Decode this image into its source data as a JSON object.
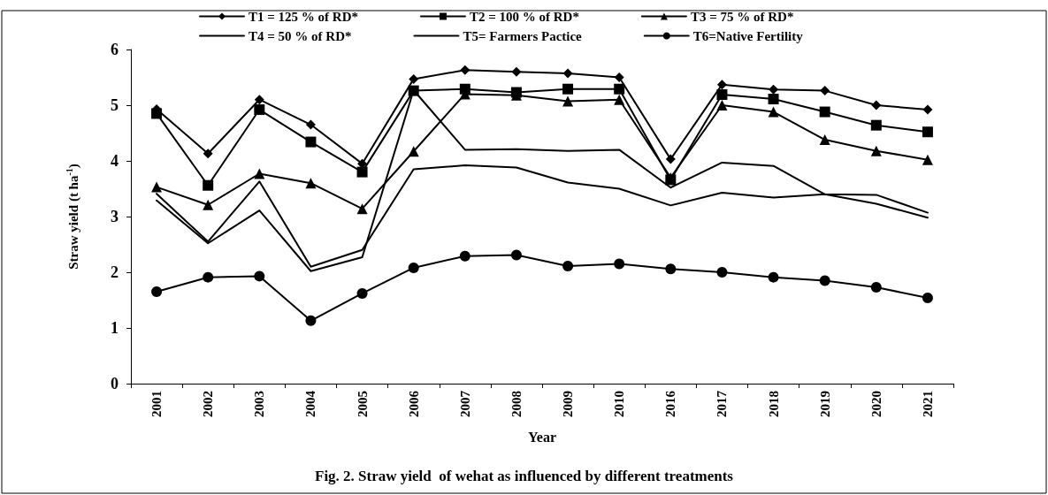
{
  "chart_data": {
    "type": "line",
    "title": "Fig. 2. Straw yield  of wehat as influenced by different treatments",
    "xlabel": "Year",
    "ylabel": "Straw yield (t ha$^{-1}$)",
    "categories": [
      "2001",
      "2002",
      "2003",
      "2004",
      "2005",
      "2006",
      "2007",
      "2008",
      "2009",
      "2010",
      "2016",
      "2017",
      "2018",
      "2019",
      "2020",
      "2021"
    ],
    "ylim": [
      0,
      6
    ],
    "yticks": [
      0,
      1,
      2,
      3,
      4,
      5,
      6
    ],
    "grid": false,
    "legend": "top",
    "line_style": "solid",
    "series": [
      {
        "name": "T1 = 125 % of RD*",
        "color": "#000000",
        "marker": "diamond",
        "values": [
          4.93,
          4.13,
          5.1,
          4.65,
          3.95,
          5.47,
          5.63,
          5.6,
          5.57,
          5.5,
          4.03,
          5.37,
          5.28,
          5.26,
          5.0,
          4.92
        ]
      },
      {
        "name": "T2 = 100 % of RD*",
        "color": "#000000",
        "marker": "square",
        "values": [
          4.85,
          3.56,
          4.92,
          4.34,
          3.8,
          5.26,
          5.29,
          5.23,
          5.29,
          5.29,
          3.66,
          5.19,
          5.11,
          4.88,
          4.64,
          4.52
        ]
      },
      {
        "name": "T3 = 75 % of RD*",
        "color": "#000000",
        "marker": "triangle",
        "values": [
          3.53,
          3.21,
          3.77,
          3.6,
          3.14,
          4.17,
          5.2,
          5.18,
          5.07,
          5.1,
          3.7,
          5.0,
          4.88,
          4.38,
          4.18,
          4.02
        ]
      },
      {
        "name": "T4 = 50 % of RD*",
        "color": "#000000",
        "marker": "none",
        "values": [
          3.41,
          2.55,
          3.63,
          2.1,
          2.4,
          3.85,
          3.92,
          3.88,
          3.61,
          3.5,
          3.2,
          3.43,
          3.34,
          3.4,
          3.23,
          2.98
        ]
      },
      {
        "name": "T5= Farmers Pactice",
        "color": "#000000",
        "marker": "none",
        "values": [
          3.29,
          2.52,
          3.11,
          2.02,
          2.27,
          5.27,
          4.2,
          4.21,
          4.18,
          4.2,
          3.52,
          3.97,
          3.91,
          3.4,
          3.39,
          3.07
        ]
      },
      {
        "name": "T6=Native Fertility",
        "color": "#000000",
        "marker": "circle",
        "values": [
          1.65,
          1.91,
          1.93,
          1.13,
          1.62,
          2.08,
          2.29,
          2.31,
          2.11,
          2.15,
          2.06,
          2.0,
          1.91,
          1.85,
          1.73,
          1.54
        ]
      }
    ]
  }
}
